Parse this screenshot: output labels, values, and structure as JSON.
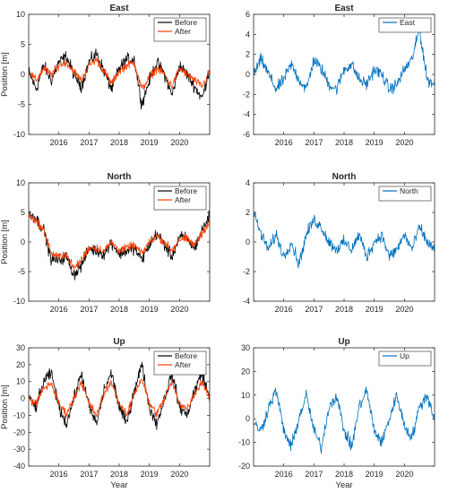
{
  "chart_data": [
    {
      "type": "line",
      "title": "East",
      "xlabel": "",
      "ylabel": "Position [m]",
      "xlim": [
        2015.0,
        2021.0
      ],
      "ylim": [
        -10,
        10
      ],
      "xticks": [
        2016,
        2017,
        2018,
        2019,
        2020
      ],
      "yticks": [
        -10,
        -5,
        0,
        5,
        10
      ],
      "legend": "top-right",
      "series": [
        {
          "name": "Before",
          "color": "#000000",
          "x": [
            2015.0,
            2015.25,
            2015.5,
            2015.75,
            2016.0,
            2016.25,
            2016.5,
            2016.75,
            2017.0,
            2017.25,
            2017.5,
            2017.75,
            2018.0,
            2018.25,
            2018.5,
            2018.75,
            2019.0,
            2019.25,
            2019.5,
            2019.75,
            2020.0,
            2020.25,
            2020.5,
            2020.75,
            2021.0
          ],
          "y": [
            0.5,
            -2.5,
            1.5,
            -1.0,
            2.0,
            3.0,
            0.0,
            -2.0,
            2.0,
            3.5,
            0.5,
            -2.5,
            1.0,
            2.5,
            2.5,
            -5.0,
            -1.0,
            2.0,
            0.0,
            -3.5,
            1.5,
            0.0,
            -2.0,
            -4.0,
            1.0
          ]
        },
        {
          "name": "After",
          "color": "#ff3d00",
          "x": [
            2015.0,
            2015.25,
            2015.5,
            2015.75,
            2016.0,
            2016.25,
            2016.5,
            2016.75,
            2017.0,
            2017.25,
            2017.5,
            2017.75,
            2018.0,
            2018.25,
            2018.5,
            2018.75,
            2019.0,
            2019.25,
            2019.5,
            2019.75,
            2020.0,
            2020.25,
            2020.5,
            2020.75,
            2021.0
          ],
          "y": [
            0.5,
            -1.0,
            1.0,
            0.0,
            1.5,
            2.0,
            0.5,
            -1.0,
            1.5,
            2.5,
            0.5,
            -1.5,
            0.5,
            1.5,
            2.0,
            -2.5,
            -0.5,
            1.0,
            0.0,
            -2.0,
            1.0,
            0.0,
            -1.0,
            -2.0,
            0.5
          ]
        }
      ]
    },
    {
      "type": "line",
      "title": "East",
      "xlabel": "",
      "ylabel": "",
      "xlim": [
        2015.0,
        2021.0
      ],
      "ylim": [
        -6,
        6
      ],
      "xticks": [
        2016,
        2017,
        2018,
        2019,
        2020
      ],
      "yticks": [
        -6,
        -4,
        -2,
        0,
        2,
        4,
        6
      ],
      "legend": "top-right",
      "series": [
        {
          "name": "East",
          "color": "#0072bd",
          "x": [
            2015.0,
            2015.25,
            2015.5,
            2015.75,
            2016.0,
            2016.25,
            2016.5,
            2016.75,
            2017.0,
            2017.25,
            2017.5,
            2017.75,
            2018.0,
            2018.25,
            2018.5,
            2018.75,
            2019.0,
            2019.25,
            2019.5,
            2019.75,
            2020.0,
            2020.25,
            2020.5,
            2020.75,
            2021.0
          ],
          "y": [
            0.0,
            1.5,
            0.0,
            -1.5,
            -0.5,
            1.0,
            -0.5,
            -1.5,
            1.5,
            0.5,
            -1.0,
            -1.5,
            0.5,
            1.0,
            -0.5,
            -1.0,
            0.5,
            0.0,
            -1.5,
            -1.0,
            0.5,
            1.5,
            4.5,
            -0.5,
            -1.0
          ]
        }
      ]
    },
    {
      "type": "line",
      "title": "North",
      "xlabel": "",
      "ylabel": "Position [m]",
      "xlim": [
        2015.0,
        2021.0
      ],
      "ylim": [
        -10,
        10
      ],
      "xticks": [
        2016,
        2017,
        2018,
        2019,
        2020
      ],
      "yticks": [
        -10,
        -5,
        0,
        5,
        10
      ],
      "legend": "top-right",
      "series": [
        {
          "name": "Before",
          "color": "#000000",
          "x": [
            2015.0,
            2015.25,
            2015.5,
            2015.75,
            2016.0,
            2016.25,
            2016.5,
            2016.75,
            2017.0,
            2017.25,
            2017.5,
            2017.75,
            2018.0,
            2018.25,
            2018.5,
            2018.75,
            2019.0,
            2019.25,
            2019.5,
            2019.75,
            2020.0,
            2020.25,
            2020.5,
            2020.75,
            2021.0
          ],
          "y": [
            5.0,
            4.0,
            2.0,
            -3.0,
            -3.0,
            -2.5,
            -5.5,
            -4.0,
            -1.0,
            -1.5,
            -2.0,
            0.0,
            -2.0,
            -1.5,
            -1.0,
            -3.0,
            -0.5,
            1.5,
            -0.5,
            -2.5,
            1.0,
            0.5,
            -1.0,
            2.0,
            4.5
          ]
        },
        {
          "name": "After",
          "color": "#ff3d00",
          "x": [
            2015.0,
            2015.25,
            2015.5,
            2015.75,
            2016.0,
            2016.25,
            2016.5,
            2016.75,
            2017.0,
            2017.25,
            2017.5,
            2017.75,
            2018.0,
            2018.25,
            2018.5,
            2018.75,
            2019.0,
            2019.25,
            2019.5,
            2019.75,
            2020.0,
            2020.25,
            2020.5,
            2020.75,
            2021.0
          ],
          "y": [
            4.5,
            3.5,
            2.0,
            -2.0,
            -2.5,
            -2.0,
            -4.5,
            -3.0,
            -1.0,
            -1.0,
            -1.5,
            0.0,
            -1.5,
            -1.0,
            -0.5,
            -2.0,
            0.0,
            1.0,
            0.0,
            -1.5,
            0.5,
            0.5,
            -0.5,
            1.5,
            3.5
          ]
        }
      ]
    },
    {
      "type": "line",
      "title": "North",
      "xlabel": "",
      "ylabel": "",
      "xlim": [
        2015.0,
        2021.0
      ],
      "ylim": [
        -4,
        4
      ],
      "xticks": [
        2016,
        2017,
        2018,
        2019,
        2020
      ],
      "yticks": [
        -4,
        -2,
        0,
        2,
        4
      ],
      "legend": "top-right",
      "series": [
        {
          "name": "North",
          "color": "#0072bd",
          "x": [
            2015.0,
            2015.25,
            2015.5,
            2015.75,
            2016.0,
            2016.25,
            2016.5,
            2016.75,
            2017.0,
            2017.25,
            2017.5,
            2017.75,
            2018.0,
            2018.25,
            2018.5,
            2018.75,
            2019.0,
            2019.25,
            2019.5,
            2019.75,
            2020.0,
            2020.25,
            2020.5,
            2020.75,
            2021.0
          ],
          "y": [
            2.0,
            0.5,
            -0.5,
            0.5,
            -1.0,
            0.0,
            -1.5,
            0.5,
            1.5,
            1.0,
            0.0,
            -0.5,
            0.0,
            -0.5,
            0.5,
            -1.0,
            0.0,
            0.5,
            -1.0,
            -0.5,
            0.5,
            -0.5,
            1.0,
            0.0,
            -0.5
          ]
        }
      ]
    },
    {
      "type": "line",
      "title": "Up",
      "xlabel": "Year",
      "ylabel": "Position [m]",
      "xlim": [
        2015.0,
        2021.0
      ],
      "ylim": [
        -40,
        30
      ],
      "xticks": [
        2016,
        2017,
        2018,
        2019,
        2020
      ],
      "yticks": [
        -40,
        -30,
        -20,
        -10,
        0,
        10,
        20,
        30
      ],
      "legend": "top-right",
      "series": [
        {
          "name": "Before",
          "color": "#000000",
          "x": [
            2015.0,
            2015.25,
            2015.5,
            2015.75,
            2016.0,
            2016.25,
            2016.5,
            2016.75,
            2017.0,
            2017.25,
            2017.5,
            2017.75,
            2018.0,
            2018.25,
            2018.5,
            2018.75,
            2019.0,
            2019.25,
            2019.5,
            2019.75,
            2020.0,
            2020.25,
            2020.5,
            2020.75,
            2021.0
          ],
          "y": [
            0.0,
            -5.0,
            10.0,
            15.0,
            -5.0,
            -15.0,
            0.0,
            15.0,
            -5.0,
            -15.0,
            5.0,
            15.0,
            -5.0,
            -15.0,
            5.0,
            20.0,
            -5.0,
            -15.0,
            0.0,
            15.0,
            -5.0,
            -10.0,
            5.0,
            15.0,
            0.0
          ]
        },
        {
          "name": "After",
          "color": "#ff3d00",
          "x": [
            2015.0,
            2015.25,
            2015.5,
            2015.75,
            2016.0,
            2016.25,
            2016.5,
            2016.75,
            2017.0,
            2017.25,
            2017.5,
            2017.75,
            2018.0,
            2018.25,
            2018.5,
            2018.75,
            2019.0,
            2019.25,
            2019.5,
            2019.75,
            2020.0,
            2020.25,
            2020.5,
            2020.75,
            2021.0
          ],
          "y": [
            0.0,
            -3.0,
            6.0,
            9.0,
            -3.0,
            -9.0,
            0.0,
            10.0,
            -3.0,
            -10.0,
            3.0,
            10.0,
            -3.0,
            -10.0,
            3.0,
            12.0,
            -3.0,
            -9.0,
            0.0,
            10.0,
            -3.0,
            -6.0,
            3.0,
            10.0,
            0.0
          ]
        }
      ]
    },
    {
      "type": "line",
      "title": "Up",
      "xlabel": "Year",
      "ylabel": "",
      "xlim": [
        2015.0,
        2021.0
      ],
      "ylim": [
        -20,
        30
      ],
      "xticks": [
        2016,
        2017,
        2018,
        2019,
        2020
      ],
      "yticks": [
        -20,
        -10,
        0,
        10,
        20,
        30
      ],
      "legend": "top-right",
      "series": [
        {
          "name": "Up",
          "color": "#0072bd",
          "x": [
            2015.0,
            2015.25,
            2015.5,
            2015.75,
            2016.0,
            2016.25,
            2016.5,
            2016.75,
            2017.0,
            2017.25,
            2017.5,
            2017.75,
            2018.0,
            2018.25,
            2018.5,
            2018.75,
            2019.0,
            2019.25,
            2019.5,
            2019.75,
            2020.0,
            2020.25,
            2020.5,
            2020.75,
            2021.0
          ],
          "y": [
            -2.0,
            -5.0,
            5.0,
            12.0,
            -5.0,
            -12.0,
            0.0,
            10.0,
            -5.0,
            -12.0,
            5.0,
            10.0,
            -5.0,
            -12.0,
            5.0,
            12.0,
            -5.0,
            -10.0,
            0.0,
            10.0,
            -3.0,
            -8.0,
            5.0,
            10.0,
            0.0
          ]
        }
      ]
    }
  ]
}
